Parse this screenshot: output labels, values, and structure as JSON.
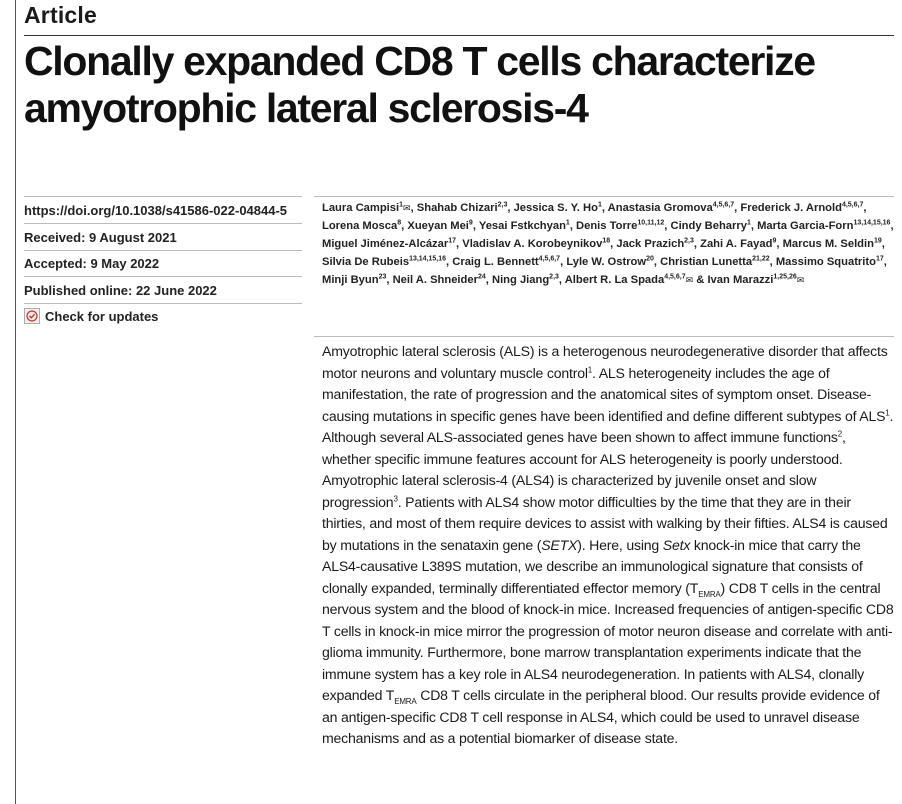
{
  "header": {
    "label": "Article",
    "title": "Clonally expanded CD8 T cells characterize amyotrophic lateral sclerosis-4"
  },
  "meta": {
    "doi": "https://doi.org/10.1038/s41586-022-04844-5",
    "received": "Received: 9 August 2021",
    "accepted": "Accepted: 9 May 2022",
    "published": "Published online: 22 June 2022",
    "check_updates": "Check for updates"
  },
  "authors": [
    {
      "name": "Laura Campisi",
      "aff": "1",
      "env": true
    },
    {
      "name": "Shahab Chizari",
      "aff": "2,3"
    },
    {
      "name": "Jessica S. Y. Ho",
      "aff": "1"
    },
    {
      "name": "Anastasia Gromova",
      "aff": "4,5,6,7"
    },
    {
      "name": "Frederick J. Arnold",
      "aff": "4,5,6,7"
    },
    {
      "name": "Lorena Mosca",
      "aff": "8"
    },
    {
      "name": "Xueyan Mei",
      "aff": "9"
    },
    {
      "name": "Yesai Fstkchyan",
      "aff": "1"
    },
    {
      "name": "Denis Torre",
      "aff": "10,11,12"
    },
    {
      "name": "Cindy Beharry",
      "aff": "1"
    },
    {
      "name": "Marta Garcia-Forn",
      "aff": "13,14,15,16"
    },
    {
      "name": "Miguel Jiménez-Alcázar",
      "aff": "17"
    },
    {
      "name": "Vladislav A. Korobeynikov",
      "aff": "18"
    },
    {
      "name": "Jack Prazich",
      "aff": "2,3"
    },
    {
      "name": "Zahi A. Fayad",
      "aff": "9"
    },
    {
      "name": "Marcus M. Seldin",
      "aff": "19"
    },
    {
      "name": "Silvia De Rubeis",
      "aff": "13,14,15,16"
    },
    {
      "name": "Craig L. Bennett",
      "aff": "4,5,6,7"
    },
    {
      "name": "Lyle W. Ostrow",
      "aff": "20"
    },
    {
      "name": "Christian Lunetta",
      "aff": "21,22"
    },
    {
      "name": "Massimo Squatrito",
      "aff": "17"
    },
    {
      "name": "Minji Byun",
      "aff": "23"
    },
    {
      "name": "Neil A. Shneider",
      "aff": "24"
    },
    {
      "name": "Ning Jiang",
      "aff": "2,3"
    },
    {
      "name": "Albert R. La Spada",
      "aff": "4,5,6,7",
      "env": true
    },
    {
      "name": "Ivan Marazzi",
      "aff": "1,25,26",
      "env": true
    }
  ],
  "abstract_html": "Amyotrophic lateral sclerosis (ALS) is a heterogenous neurodegenerative disorder that affects motor neurons and voluntary muscle control<sup>1</sup>. ALS heterogeneity includes the age of manifestation, the rate of progression and the anatomical sites of symptom onset. Disease-causing mutations in specific genes have been identified and define different subtypes of ALS<sup>1</sup>. Although several ALS-associated genes have been shown to affect immune functions<sup>2</sup>, whether specific immune features account for ALS heterogeneity is poorly understood. Amyotrophic lateral sclerosis-4 (ALS4) is characterized by juvenile onset and slow progression<sup>3</sup>. Patients with ALS4 show motor difficulties by the time that they are in their thirties, and most of them require devices to assist with walking by their fifties. ALS4 is caused by mutations in the senataxin gene (<i>SETX</i>). Here, using <i>Setx</i> knock-in mice that carry the ALS4-causative L389S mutation, we describe an immunological signature that consists of clonally expanded, terminally differentiated effector memory (T<sub>EMRA</sub>) CD8 T cells in the central nervous system and the blood of knock-in mice. Increased frequencies of antigen-specific CD8 T cells in knock-in mice mirror the progression of motor neuron disease and correlate with anti-glioma immunity. Furthermore, bone marrow transplantation experiments indicate that the immune system has a key role in ALS4 neurodegeneration. In patients with ALS4, clonally expanded T<sub>EMRA</sub> CD8 T cells circulate in the peripheral blood. Our results provide evidence of an antigen-specific CD8 T cell response in ALS4, which could be used to unravel disease mechanisms and as a potential biomarker of disease state."
}
